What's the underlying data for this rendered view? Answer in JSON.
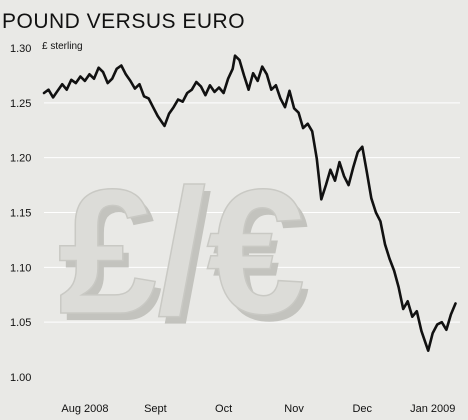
{
  "chart_data": {
    "type": "line",
    "title": "POUND VERSUS EURO",
    "ylabel": "£ sterling",
    "ylim": [
      1.0,
      1.3
    ],
    "y_ticks": [
      {
        "value": 1.3,
        "label": "1.30"
      },
      {
        "value": 1.25,
        "label": "1.25"
      },
      {
        "value": 1.2,
        "label": "1.20"
      },
      {
        "value": 1.15,
        "label": "1.15"
      },
      {
        "value": 1.1,
        "label": "1.10"
      },
      {
        "value": 1.05,
        "label": "1.05"
      },
      {
        "value": 1.0,
        "label": "1.00"
      }
    ],
    "xlim": [
      "2008-07-14",
      "2009-01-13"
    ],
    "x_ticks": [
      {
        "date": "2008-08-01",
        "label": "Aug 2008"
      },
      {
        "date": "2008-09-01",
        "label": "Sept"
      },
      {
        "date": "2008-10-01",
        "label": "Oct"
      },
      {
        "date": "2008-11-01",
        "label": "Nov"
      },
      {
        "date": "2008-12-01",
        "label": "Dec"
      },
      {
        "date": "2009-01-01",
        "label": "Jan 2009"
      }
    ],
    "grid": "horizontal",
    "watermark_symbol": "£/€",
    "series": [
      {
        "color": "#111111",
        "points": [
          [
            "2008-07-14",
            1.259
          ],
          [
            "2008-07-16",
            1.262
          ],
          [
            "2008-07-18",
            1.255
          ],
          [
            "2008-07-20",
            1.261
          ],
          [
            "2008-07-22",
            1.267
          ],
          [
            "2008-07-24",
            1.262
          ],
          [
            "2008-07-26",
            1.271
          ],
          [
            "2008-07-28",
            1.268
          ],
          [
            "2008-07-30",
            1.274
          ],
          [
            "2008-08-01",
            1.27
          ],
          [
            "2008-08-03",
            1.276
          ],
          [
            "2008-08-05",
            1.272
          ],
          [
            "2008-08-07",
            1.282
          ],
          [
            "2008-08-09",
            1.278
          ],
          [
            "2008-08-11",
            1.268
          ],
          [
            "2008-08-13",
            1.272
          ],
          [
            "2008-08-15",
            1.281
          ],
          [
            "2008-08-17",
            1.284
          ],
          [
            "2008-08-19",
            1.276
          ],
          [
            "2008-08-21",
            1.27
          ],
          [
            "2008-08-23",
            1.263
          ],
          [
            "2008-08-25",
            1.267
          ],
          [
            "2008-08-27",
            1.256
          ],
          [
            "2008-08-29",
            1.254
          ],
          [
            "2008-08-31",
            1.246
          ],
          [
            "2008-09-02",
            1.238
          ],
          [
            "2008-09-04",
            1.232
          ],
          [
            "2008-09-05",
            1.229
          ],
          [
            "2008-09-07",
            1.24
          ],
          [
            "2008-09-09",
            1.246
          ],
          [
            "2008-09-11",
            1.253
          ],
          [
            "2008-09-13",
            1.251
          ],
          [
            "2008-09-15",
            1.259
          ],
          [
            "2008-09-17",
            1.262
          ],
          [
            "2008-09-19",
            1.269
          ],
          [
            "2008-09-21",
            1.265
          ],
          [
            "2008-09-23",
            1.257
          ],
          [
            "2008-09-25",
            1.266
          ],
          [
            "2008-09-27",
            1.26
          ],
          [
            "2008-09-29",
            1.264
          ],
          [
            "2008-10-01",
            1.259
          ],
          [
            "2008-10-03",
            1.272
          ],
          [
            "2008-10-05",
            1.281
          ],
          [
            "2008-10-06",
            1.293
          ],
          [
            "2008-10-08",
            1.289
          ],
          [
            "2008-10-10",
            1.275
          ],
          [
            "2008-10-12",
            1.262
          ],
          [
            "2008-10-14",
            1.277
          ],
          [
            "2008-10-16",
            1.27
          ],
          [
            "2008-10-18",
            1.283
          ],
          [
            "2008-10-20",
            1.276
          ],
          [
            "2008-10-22",
            1.262
          ],
          [
            "2008-10-24",
            1.266
          ],
          [
            "2008-10-26",
            1.254
          ],
          [
            "2008-10-28",
            1.246
          ],
          [
            "2008-10-30",
            1.261
          ],
          [
            "2008-11-01",
            1.245
          ],
          [
            "2008-11-03",
            1.241
          ],
          [
            "2008-11-05",
            1.227
          ],
          [
            "2008-11-07",
            1.231
          ],
          [
            "2008-11-09",
            1.224
          ],
          [
            "2008-11-11",
            1.199
          ],
          [
            "2008-11-13",
            1.162
          ],
          [
            "2008-11-15",
            1.175
          ],
          [
            "2008-11-17",
            1.189
          ],
          [
            "2008-11-19",
            1.179
          ],
          [
            "2008-11-21",
            1.196
          ],
          [
            "2008-11-23",
            1.183
          ],
          [
            "2008-11-25",
            1.175
          ],
          [
            "2008-11-27",
            1.191
          ],
          [
            "2008-11-29",
            1.205
          ],
          [
            "2008-12-01",
            1.21
          ],
          [
            "2008-12-03",
            1.187
          ],
          [
            "2008-12-05",
            1.163
          ],
          [
            "2008-12-07",
            1.15
          ],
          [
            "2008-12-09",
            1.142
          ],
          [
            "2008-12-11",
            1.121
          ],
          [
            "2008-12-13",
            1.108
          ],
          [
            "2008-12-15",
            1.097
          ],
          [
            "2008-12-17",
            1.082
          ],
          [
            "2008-12-19",
            1.062
          ],
          [
            "2008-12-21",
            1.069
          ],
          [
            "2008-12-23",
            1.055
          ],
          [
            "2008-12-25",
            1.06
          ],
          [
            "2008-12-27",
            1.042
          ],
          [
            "2008-12-29",
            1.03
          ],
          [
            "2008-12-30",
            1.024
          ],
          [
            "2009-01-01",
            1.04
          ],
          [
            "2009-01-03",
            1.048
          ],
          [
            "2009-01-05",
            1.05
          ],
          [
            "2009-01-07",
            1.043
          ],
          [
            "2009-01-09",
            1.057
          ],
          [
            "2009-01-11",
            1.067
          ]
        ]
      }
    ]
  }
}
